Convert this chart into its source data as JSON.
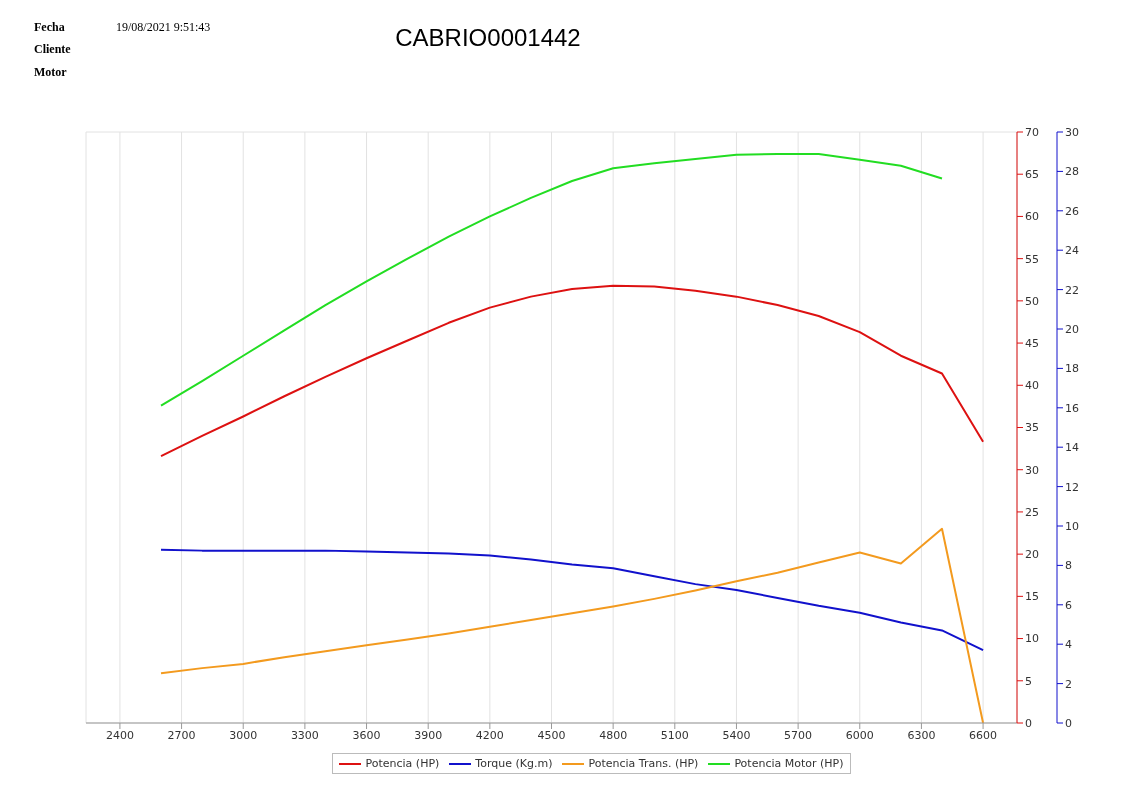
{
  "chart_data": {
    "type": "line",
    "title": "CABRIO0001442",
    "annotations": [
      "Fecha",
      "19/08/2021 9:51:43",
      "Cliente",
      "Motor"
    ],
    "x": [
      2600,
      2800,
      3000,
      3200,
      3400,
      3600,
      3800,
      4000,
      4200,
      4400,
      4600,
      4800,
      5000,
      5200,
      5400,
      5600,
      5800,
      6000,
      6200,
      6400,
      6600
    ],
    "series": [
      {
        "name": "Potencia (HP)",
        "color": "#dd1111",
        "values": [
          31.6,
          34,
          36.3,
          38.7,
          41,
          43.2,
          45.3,
          47.4,
          49.2,
          50.5,
          51.4,
          51.8,
          51.7,
          51.2,
          50.5,
          49.5,
          48.2,
          46.3,
          43.5,
          41.4,
          33.3
        ]
      },
      {
        "name": "Torque (Kg.m)",
        "color": "#1111cc",
        "axis": "y2",
        "values": [
          8.8,
          8.75,
          8.75,
          8.75,
          8.75,
          8.7,
          8.65,
          8.6,
          8.5,
          8.3,
          8.05,
          7.85,
          7.45,
          7.05,
          6.75,
          6.35,
          5.95,
          5.6,
          5.1,
          4.7,
          3.7
        ]
      },
      {
        "name": "Potencia Trans. (HP)",
        "color": "#f39a1e",
        "values": [
          5.9,
          6.5,
          7,
          7.8,
          8.5,
          9.2,
          9.9,
          10.6,
          11.4,
          12.2,
          13,
          13.8,
          14.7,
          15.7,
          16.8,
          17.8,
          19,
          20.2,
          18.9,
          23,
          0
        ]
      },
      {
        "name": "Potencia Motor (HP)",
        "color": "#22dd22",
        "values": [
          37.6,
          40.5,
          43.5,
          46.5,
          49.5,
          52.3,
          55,
          57.6,
          60,
          62.2,
          64.2,
          65.7,
          66.3,
          66.8,
          67.3,
          67.4,
          67.4,
          66.7,
          66,
          64.5,
          null
        ]
      }
    ],
    "xlim": [
      2235,
      6765
    ],
    "xticks": [
      2400,
      2700,
      3000,
      3300,
      3600,
      3900,
      4200,
      4500,
      4800,
      5100,
      5400,
      5700,
      6000,
      6300,
      6600
    ],
    "ylim": [
      0,
      70
    ],
    "yticks": [
      0,
      5,
      10,
      15,
      20,
      25,
      30,
      35,
      40,
      45,
      50,
      55,
      60,
      65,
      70
    ],
    "y2lim": [
      0,
      30
    ],
    "y2ticks": [
      0,
      2,
      4,
      6,
      8,
      10,
      12,
      14,
      16,
      18,
      20,
      22,
      24,
      26,
      28,
      30
    ],
    "grid": true,
    "legend": "bottom",
    "marker": "none",
    "line_style": "solid"
  }
}
